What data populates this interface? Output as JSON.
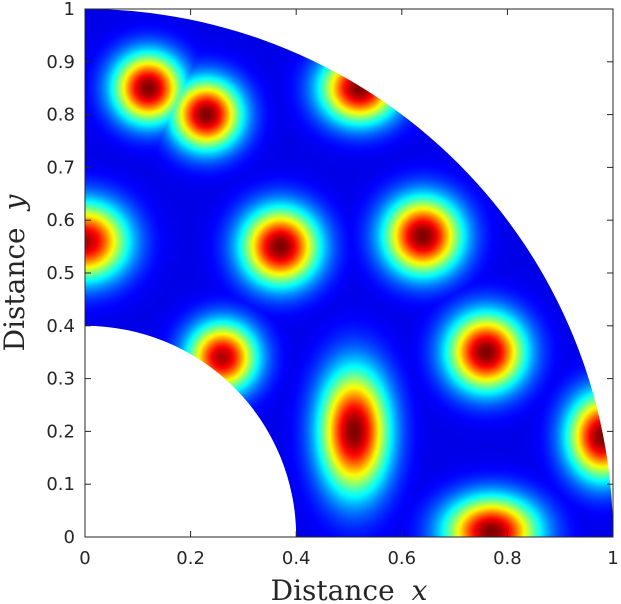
{
  "chart_data": {
    "type": "heatmap",
    "title": "",
    "xlabel": "Distance",
    "xlabel_var": "x",
    "ylabel": "Distance",
    "ylabel_var": "y",
    "xlim": [
      0,
      1
    ],
    "ylim": [
      0,
      1
    ],
    "x_ticks": [
      "0",
      "0.2",
      "0.4",
      "0.6",
      "0.8",
      "1"
    ],
    "y_ticks": [
      "0",
      "0.1",
      "0.2",
      "0.3",
      "0.4",
      "0.5",
      "0.6",
      "0.7",
      "0.8",
      "0.9",
      "1"
    ],
    "colormap": "jet",
    "domain": {
      "shape": "annular quarter sector",
      "inner_radius": 0.4,
      "outer_radius": 1.0
    },
    "hotspots": [
      {
        "x": 0.12,
        "y": 0.85,
        "sx": 0.045,
        "sy": 0.045,
        "value": 1.0
      },
      {
        "x": 0.23,
        "y": 0.8,
        "sx": 0.045,
        "sy": 0.045,
        "value": 1.0
      },
      {
        "x": 0.0,
        "y": 0.56,
        "sx": 0.055,
        "sy": 0.05,
        "value": 0.95
      },
      {
        "x": 0.37,
        "y": 0.55,
        "sx": 0.05,
        "sy": 0.05,
        "value": 1.0
      },
      {
        "x": 0.52,
        "y": 0.85,
        "sx": 0.05,
        "sy": 0.045,
        "value": 1.0
      },
      {
        "x": 0.64,
        "y": 0.57,
        "sx": 0.05,
        "sy": 0.05,
        "value": 1.0
      },
      {
        "x": 0.26,
        "y": 0.34,
        "sx": 0.045,
        "sy": 0.045,
        "value": 0.95
      },
      {
        "x": 0.51,
        "y": 0.2,
        "sx": 0.045,
        "sy": 0.08,
        "value": 1.0
      },
      {
        "x": 0.76,
        "y": 0.35,
        "sx": 0.05,
        "sy": 0.05,
        "value": 1.0
      },
      {
        "x": 0.77,
        "y": 0.01,
        "sx": 0.06,
        "sy": 0.045,
        "value": 1.0
      },
      {
        "x": 0.98,
        "y": 0.19,
        "sx": 0.045,
        "sy": 0.055,
        "value": 1.0
      }
    ]
  }
}
